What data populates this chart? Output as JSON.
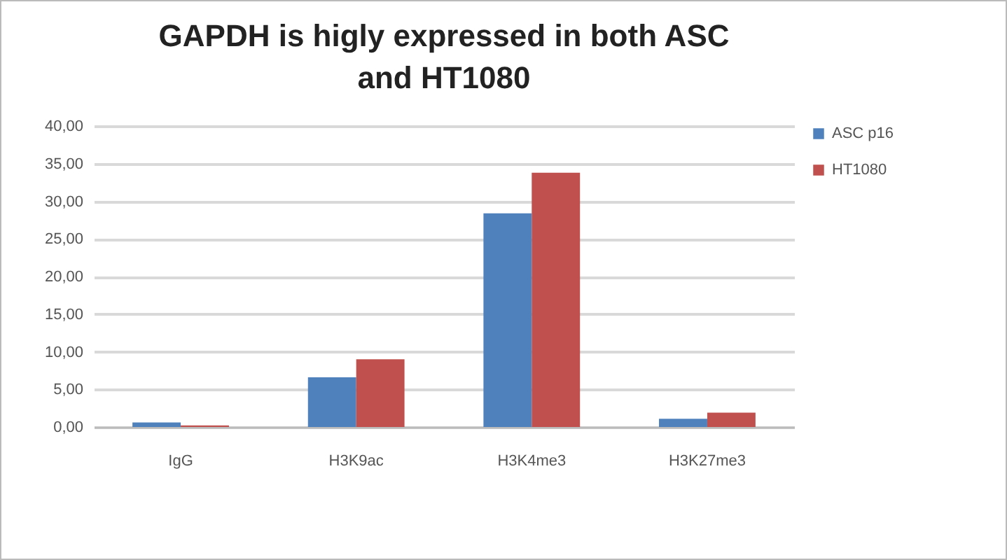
{
  "chart_data": {
    "type": "bar",
    "title": "GAPDH is higly expressed in both ASC and HT1080",
    "categories": [
      "IgG",
      "H3K9ac",
      "H3K4me3",
      "H3K27me3"
    ],
    "series": [
      {
        "name": "ASC p16",
        "color": "#4f81bd",
        "values": [
          0.6,
          6.6,
          28.4,
          1.1
        ]
      },
      {
        "name": "HT1080",
        "color": "#c0504d",
        "values": [
          0.2,
          9.0,
          33.8,
          1.9
        ]
      }
    ],
    "ylim": [
      0,
      40
    ],
    "yticks": [
      {
        "value": 0,
        "label": "0,00"
      },
      {
        "value": 5,
        "label": "5,00"
      },
      {
        "value": 10,
        "label": "10,00"
      },
      {
        "value": 15,
        "label": "15,00"
      },
      {
        "value": 20,
        "label": "20,00"
      },
      {
        "value": 25,
        "label": "25,00"
      },
      {
        "value": 30,
        "label": "30,00"
      },
      {
        "value": 35,
        "label": "35,00"
      },
      {
        "value": 40,
        "label": "40,00"
      }
    ],
    "grid": "y",
    "legend": "right"
  }
}
